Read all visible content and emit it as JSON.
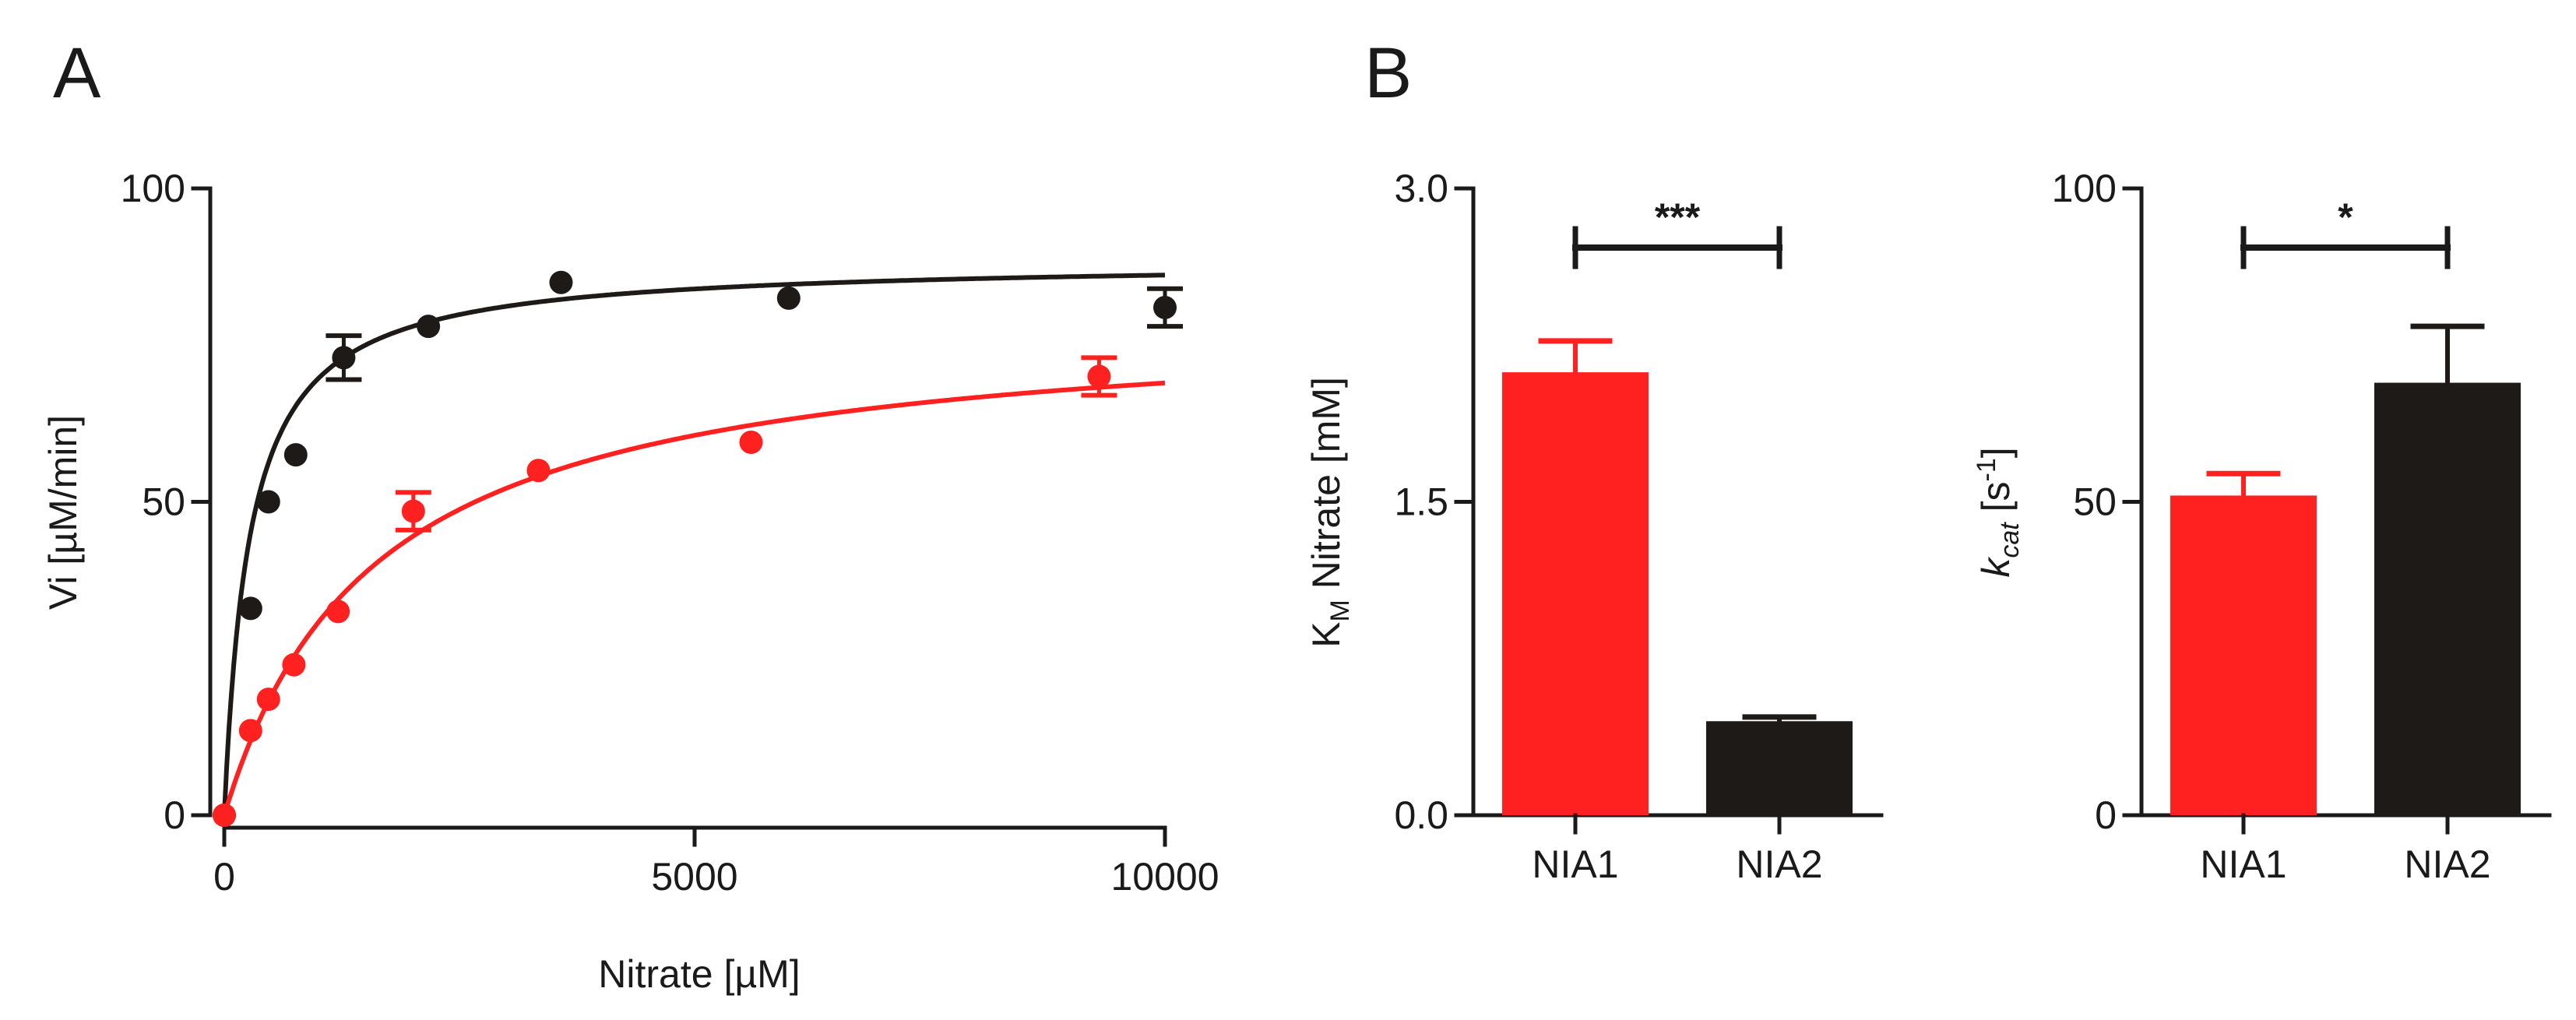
{
  "panels": {
    "a_label": "A",
    "b_label": "B"
  },
  "colors": {
    "nia1": "#ff2020",
    "nia2": "#1e1a17",
    "axis": "#1a1a1a"
  },
  "chart_data": [
    {
      "type": "scatter",
      "panel": "A",
      "xlabel": "Nitrate [µM]",
      "ylabel": "Vi [µM/min]",
      "xlim": [
        0,
        10000
      ],
      "ylim": [
        0,
        100
      ],
      "x_ticks": [
        "0",
        "5000",
        "10000"
      ],
      "x_tick_values": [
        0,
        5000,
        10000
      ],
      "y_ticks": [
        "0",
        "50",
        "100"
      ],
      "y_tick_values": [
        0,
        50,
        100
      ],
      "grid": false,
      "series": [
        {
          "color": "#1e1a17",
          "points": [
            {
              "x": 0,
              "y": 0
            },
            {
              "x": 280,
              "y": 33,
              "err": 1
            },
            {
              "x": 470,
              "y": 50,
              "err": 1
            },
            {
              "x": 760,
              "y": 57.5,
              "err": 1
            },
            {
              "x": 1270,
              "y": 73,
              "err": 3.5
            },
            {
              "x": 2170,
              "y": 78,
              "err": 1
            },
            {
              "x": 3580,
              "y": 85,
              "err": 1
            },
            {
              "x": 6000,
              "y": 82.5,
              "err": 1
            },
            {
              "x": 10000,
              "y": 81,
              "err": 3
            }
          ],
          "fit": {
            "model": "michaelis-menten",
            "vmax": 88.5,
            "km": 270
          }
        },
        {
          "color": "#ff2020",
          "points": [
            {
              "x": 0,
              "y": 0
            },
            {
              "x": 280,
              "y": 13.5,
              "err": 1
            },
            {
              "x": 470,
              "y": 18.5,
              "err": 1
            },
            {
              "x": 740,
              "y": 24,
              "err": 1
            },
            {
              "x": 1210,
              "y": 32.5,
              "err": 1
            },
            {
              "x": 2010,
              "y": 48.5,
              "err": 3
            },
            {
              "x": 3340,
              "y": 55,
              "err": 1
            },
            {
              "x": 5600,
              "y": 59.5,
              "err": 1
            },
            {
              "x": 9300,
              "y": 70,
              "err": 3
            }
          ],
          "fit": {
            "model": "michaelis-menten",
            "vmax": 80,
            "km": 1600
          }
        }
      ]
    },
    {
      "type": "bar",
      "panel": "B",
      "ylabel": "KM Nitrate [mM]",
      "ylabel_main": "K",
      "ylabel_sub": "M",
      "ylabel_rest": " Nitrate [mM]",
      "ylim": [
        0,
        3.0
      ],
      "y_ticks": [
        "0.0",
        "1.5",
        "3.0"
      ],
      "y_tick_values": [
        0,
        1.5,
        3.0
      ],
      "categories": [
        "NIA1",
        "NIA2"
      ],
      "values": [
        2.12,
        0.45
      ],
      "errors": [
        0.15,
        0.02
      ],
      "colors": [
        "#ff2020",
        "#1e1a17"
      ],
      "significance": "***"
    },
    {
      "type": "bar",
      "panel": "B",
      "ylabel": "kcat [s-1]",
      "ylabel_k": "k",
      "ylabel_cat": "cat",
      "ylabel_unit_open": " [s",
      "ylabel_unit_exp": "-1",
      "ylabel_unit_close": "]",
      "ylim": [
        0,
        100
      ],
      "y_ticks": [
        "0",
        "50",
        "100"
      ],
      "y_tick_values": [
        0,
        50,
        100
      ],
      "categories": [
        "NIA1",
        "NIA2"
      ],
      "values": [
        51,
        69
      ],
      "errors": [
        3.5,
        9
      ],
      "colors": [
        "#ff2020",
        "#1e1a17"
      ],
      "significance": "*"
    }
  ]
}
